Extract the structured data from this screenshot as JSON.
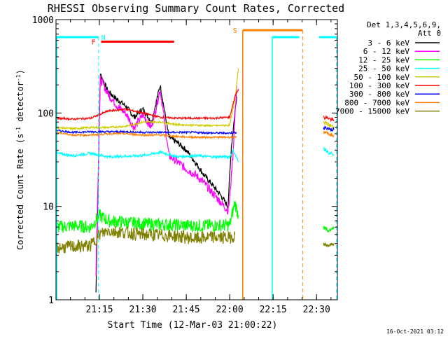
{
  "chart_data": {
    "type": "line",
    "title": "RHESSI Observing Summary Count Rates, Corrected",
    "ylabel_main": "Corrected Count Rate (s",
    "ylabel_sup1": "-1",
    "ylabel_mid": " detector",
    "ylabel_sup2": "-1",
    "ylabel_end": ")",
    "xlabel": "Start Time (12-Mar-03 21:00:22)",
    "timestamp": "16-Oct-2021 03:12",
    "y_scale": "log",
    "ylim": [
      1,
      1000
    ],
    "xlim_minutes": [
      21.0,
      22.62
    ],
    "y_ticks": [
      {
        "value": 1,
        "label": "1"
      },
      {
        "value": 10,
        "label": "10"
      },
      {
        "value": 100,
        "label": "100"
      },
      {
        "value": 1000,
        "label": "1000"
      }
    ],
    "x_ticks": [
      {
        "t": 21.25,
        "label": "21:15"
      },
      {
        "t": 21.5,
        "label": "21:30"
      },
      {
        "t": 21.75,
        "label": "21:45"
      },
      {
        "t": 22.0,
        "label": "22:00"
      },
      {
        "t": 22.25,
        "label": "22:15"
      },
      {
        "t": 22.5,
        "label": "22:30"
      }
    ],
    "legend_header": [
      "Det 1,3,4,5,6,9,",
      "Att 0"
    ],
    "series": [
      {
        "name": "3 - 6 keV",
        "color": "#000000",
        "points": [
          [
            21.23,
            1.2
          ],
          [
            21.255,
            260
          ],
          [
            21.3,
            170
          ],
          [
            21.35,
            140
          ],
          [
            21.4,
            120
          ],
          [
            21.45,
            90
          ],
          [
            21.5,
            110
          ],
          [
            21.55,
            80
          ],
          [
            21.6,
            200
          ],
          [
            21.65,
            55
          ],
          [
            21.7,
            48
          ],
          [
            21.75,
            40
          ],
          [
            21.8,
            30
          ],
          [
            21.85,
            22
          ],
          [
            21.9,
            17
          ],
          [
            21.95,
            13
          ],
          [
            21.99,
            10
          ],
          [
            22.01,
            45
          ],
          [
            22.04,
            150
          ]
        ]
      },
      {
        "name": "6 - 12 keV",
        "color": "#ff00ff",
        "points": [
          [
            21.23,
            2
          ],
          [
            21.255,
            230
          ],
          [
            21.3,
            160
          ],
          [
            21.35,
            120
          ],
          [
            21.4,
            100
          ],
          [
            21.45,
            70
          ],
          [
            21.5,
            95
          ],
          [
            21.55,
            70
          ],
          [
            21.6,
            180
          ],
          [
            21.65,
            35
          ],
          [
            21.7,
            30
          ],
          [
            21.75,
            25
          ],
          [
            21.8,
            22
          ],
          [
            21.85,
            18
          ],
          [
            21.9,
            14
          ],
          [
            21.95,
            11
          ],
          [
            21.99,
            9
          ],
          [
            22.0,
            12
          ],
          [
            22.02,
            40
          ],
          [
            22.04,
            200
          ]
        ]
      },
      {
        "name": "12 - 25 keV",
        "color": "#00ff00",
        "points": [
          [
            21.0,
            6
          ],
          [
            21.1,
            6.2
          ],
          [
            21.2,
            6
          ],
          [
            21.25,
            8
          ],
          [
            21.3,
            7
          ],
          [
            21.5,
            6.5
          ],
          [
            21.8,
            6.2
          ],
          [
            22.0,
            6.3
          ],
          [
            22.03,
            11
          ],
          [
            22.05,
            8
          ]
        ]
      },
      {
        "name": "25 - 50 keV",
        "color": "#00ffff",
        "points": [
          [
            21.0,
            37
          ],
          [
            21.1,
            35
          ],
          [
            21.2,
            37
          ],
          [
            21.3,
            34
          ],
          [
            21.5,
            35
          ],
          [
            21.6,
            38
          ],
          [
            21.7,
            34
          ],
          [
            21.8,
            35
          ],
          [
            21.9,
            34
          ],
          [
            22.0,
            34
          ],
          [
            22.02,
            40
          ],
          [
            22.05,
            30
          ]
        ]
      },
      {
        "name": "50 - 100 keV",
        "color": "#cccc00",
        "points": [
          [
            21.0,
            70
          ],
          [
            21.1,
            68
          ],
          [
            21.2,
            70
          ],
          [
            21.3,
            70
          ],
          [
            21.4,
            72
          ],
          [
            21.5,
            80
          ],
          [
            21.6,
            80
          ],
          [
            21.7,
            75
          ],
          [
            21.8,
            74
          ],
          [
            21.9,
            73
          ],
          [
            22.0,
            74
          ],
          [
            22.03,
            140
          ],
          [
            22.05,
            300
          ]
        ]
      },
      {
        "name": "100 - 300 keV",
        "color": "#ff0000",
        "points": [
          [
            21.0,
            88
          ],
          [
            21.1,
            86
          ],
          [
            21.2,
            88
          ],
          [
            21.3,
            105
          ],
          [
            21.4,
            110
          ],
          [
            21.5,
            100
          ],
          [
            21.6,
            90
          ],
          [
            21.7,
            88
          ],
          [
            21.8,
            88
          ],
          [
            21.9,
            88
          ],
          [
            22.0,
            90
          ],
          [
            22.03,
            150
          ],
          [
            22.05,
            180
          ]
        ]
      },
      {
        "name": "300 - 800 keV",
        "color": "#0000ff",
        "points": [
          [
            21.0,
            65
          ],
          [
            21.1,
            62
          ],
          [
            21.2,
            63
          ],
          [
            21.3,
            63
          ],
          [
            21.4,
            63
          ],
          [
            21.5,
            62
          ],
          [
            21.6,
            62
          ],
          [
            21.7,
            62
          ],
          [
            21.8,
            62
          ],
          [
            21.9,
            61
          ],
          [
            22.0,
            61
          ],
          [
            22.04,
            62
          ]
        ]
      },
      {
        "name": "800 - 7000 keV",
        "color": "#ff8000",
        "points": [
          [
            21.0,
            62
          ],
          [
            21.1,
            58
          ],
          [
            21.2,
            58
          ],
          [
            21.3,
            60
          ],
          [
            21.4,
            60
          ],
          [
            21.5,
            58
          ],
          [
            21.6,
            58
          ],
          [
            21.7,
            56
          ],
          [
            21.8,
            55
          ],
          [
            21.9,
            55
          ],
          [
            22.0,
            55
          ],
          [
            22.04,
            55
          ]
        ]
      },
      {
        "name": "7000 - 15000 keV",
        "color": "#808000",
        "points": [
          [
            21.0,
            3.6
          ],
          [
            21.1,
            3.7
          ],
          [
            21.2,
            3.8
          ],
          [
            21.25,
            5
          ],
          [
            21.3,
            5.5
          ],
          [
            21.5,
            5
          ],
          [
            21.7,
            4.8
          ],
          [
            21.8,
            4.5
          ],
          [
            21.9,
            4.7
          ],
          [
            22.0,
            4.6
          ],
          [
            22.03,
            5
          ]
        ]
      }
    ],
    "tail_series": [
      {
        "color": "#ff0000",
        "points": [
          [
            22.54,
            90
          ],
          [
            22.57,
            88
          ],
          [
            22.6,
            82
          ]
        ]
      },
      {
        "color": "#cccc00",
        "points": [
          [
            22.54,
            80
          ],
          [
            22.57,
            75
          ],
          [
            22.6,
            70
          ]
        ]
      },
      {
        "color": "#0000ff",
        "points": [
          [
            22.54,
            70
          ],
          [
            22.57,
            68
          ],
          [
            22.6,
            66
          ]
        ]
      },
      {
        "color": "#ff8000",
        "points": [
          [
            22.54,
            62
          ],
          [
            22.57,
            60
          ],
          [
            22.6,
            58
          ]
        ]
      },
      {
        "color": "#00ffff",
        "points": [
          [
            22.54,
            42
          ],
          [
            22.57,
            38
          ],
          [
            22.6,
            36
          ]
        ]
      },
      {
        "color": "#00ff00",
        "points": [
          [
            22.54,
            6
          ],
          [
            22.57,
            5.5
          ],
          [
            22.6,
            5.8
          ]
        ]
      },
      {
        "color": "#808000",
        "points": [
          [
            22.54,
            4
          ],
          [
            22.57,
            3.8
          ],
          [
            22.6,
            4
          ]
        ]
      }
    ],
    "flags": {
      "night": {
        "label": "N",
        "color": "#00ffff",
        "bars": [
          [
            21.0,
            21.245
          ],
          [
            22.245,
            22.4
          ],
          [
            22.515,
            22.615
          ]
        ],
        "y": 650,
        "boundaries": [
          21.245,
          22.615
        ],
        "night_start": 22.245
      },
      "flare": {
        "label": "F",
        "color": "#ff0000",
        "start": 21.26,
        "end": 21.68,
        "y": 580
      },
      "saa": {
        "label": "S",
        "color": "#ff8000",
        "start": 22.075,
        "end": 22.42,
        "y": 770,
        "dashed_at": 22.42
      }
    }
  }
}
